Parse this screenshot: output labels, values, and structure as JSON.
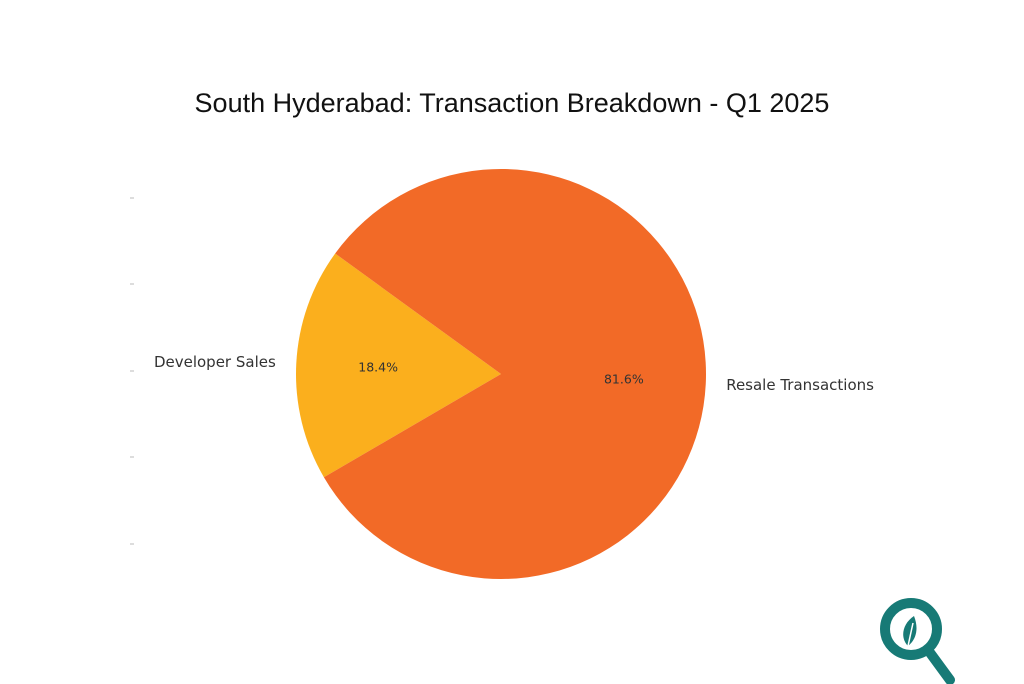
{
  "chart_data": {
    "type": "pie",
    "title": "South Hyderabad: Transaction Breakdown - Q1 2025",
    "slices": [
      {
        "label": "Developer Sales",
        "value": 18.4,
        "pct_label": "18.4%",
        "color": "#FBAF1D"
      },
      {
        "label": "Resale Transactions",
        "value": 81.6,
        "pct_label": "81.6%",
        "color": "#F26A27"
      }
    ],
    "start_angle_deg": 144,
    "direction": "counterclockwise",
    "legend": "none"
  },
  "logo": {
    "icon": "magnifier-leaf-icon",
    "color": "#177A76"
  }
}
